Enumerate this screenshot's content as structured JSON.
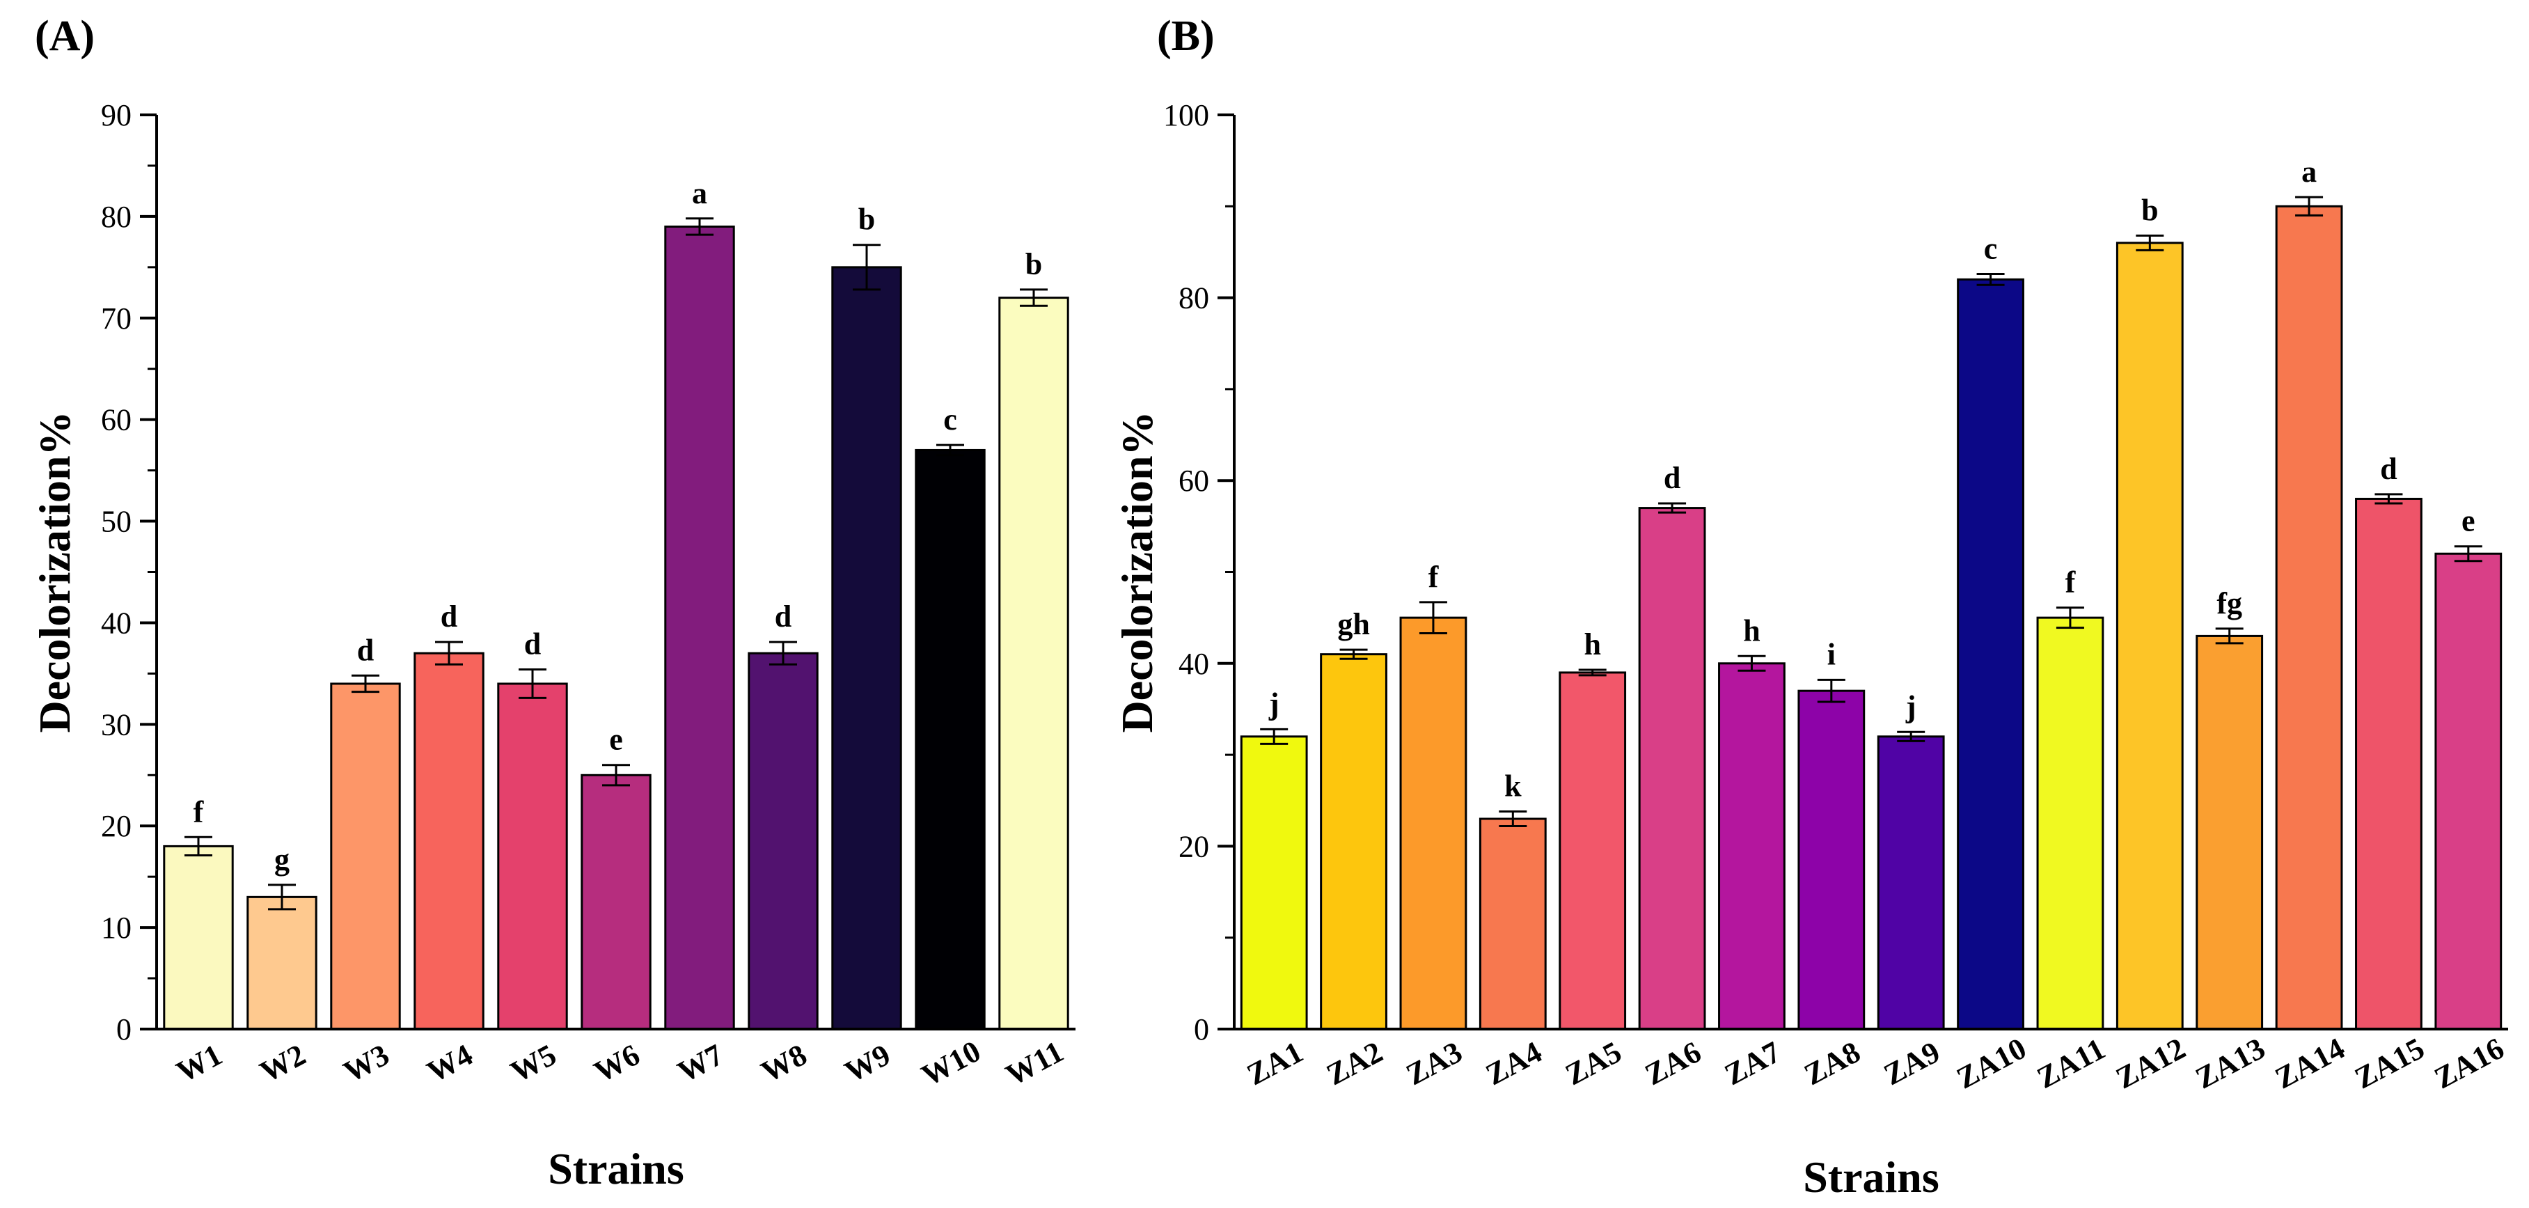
{
  "chart_data": [
    {
      "type": "bar",
      "panel_label": "(A)",
      "xlabel": "Strains",
      "ylabel": "Decolorization%",
      "ylim": [
        0,
        90
      ],
      "yticks": [
        0,
        10,
        20,
        30,
        40,
        50,
        60,
        70,
        80,
        90
      ],
      "categories": [
        "W1",
        "W2",
        "W3",
        "W4",
        "W5",
        "W6",
        "W7",
        "W8",
        "W9",
        "W10",
        "W11"
      ],
      "values": [
        18,
        13,
        34,
        37,
        34,
        25,
        79,
        37,
        75,
        57,
        72
      ],
      "errors": [
        0.9,
        1.2,
        0.8,
        1.1,
        1.4,
        1.0,
        0.8,
        1.1,
        2.2,
        0.5,
        0.8
      ],
      "letters": [
        "f",
        "g",
        "d",
        "d",
        "d",
        "e",
        "a",
        "d",
        "b",
        "c",
        "b"
      ],
      "colors": [
        "#fbf9bf",
        "#fec98f",
        "#fd9668",
        "#f7645c",
        "#e4416c",
        "#b62d7e",
        "#821c7d",
        "#52126f",
        "#140b3a",
        "#000004",
        "#fbfcbf"
      ]
    },
    {
      "type": "bar",
      "panel_label": "(B)",
      "xlabel": "Strains",
      "ylabel": "Decolorization%",
      "ylim": [
        0,
        100
      ],
      "yticks": [
        0,
        20,
        40,
        60,
        80,
        100
      ],
      "categories": [
        "ZA1",
        "ZA2",
        "ZA3",
        "ZA4",
        "ZA5",
        "ZA6",
        "ZA7",
        "ZA8",
        "ZA9",
        "ZA10",
        "ZA11",
        "ZA12",
        "ZA13",
        "ZA14",
        "ZA15",
        "ZA16"
      ],
      "values": [
        32,
        41,
        45,
        23,
        39,
        57,
        40,
        37,
        32,
        82,
        45,
        86,
        43,
        90,
        58,
        52
      ],
      "errors": [
        0.8,
        0.5,
        1.7,
        0.8,
        0.3,
        0.5,
        0.8,
        1.2,
        0.5,
        0.6,
        1.1,
        0.8,
        0.8,
        1.0,
        0.5,
        0.8
      ],
      "letters": [
        "j",
        "gh",
        "f",
        "k",
        "h",
        "d",
        "h",
        "i",
        "j",
        "c",
        "f",
        "b",
        "fg",
        "a",
        "d",
        "e"
      ],
      "colors": [
        "#f0f90e",
        "#fdc60d",
        "#fc9a2a",
        "#f7784f",
        "#f2576a",
        "#d93f87",
        "#b4169e",
        "#8d03a8",
        "#5003a5",
        "#0c0887",
        "#f0f921",
        "#fdc527",
        "#fa9f30",
        "#f7784f",
        "#ee5469",
        "#d93f87"
      ]
    }
  ]
}
